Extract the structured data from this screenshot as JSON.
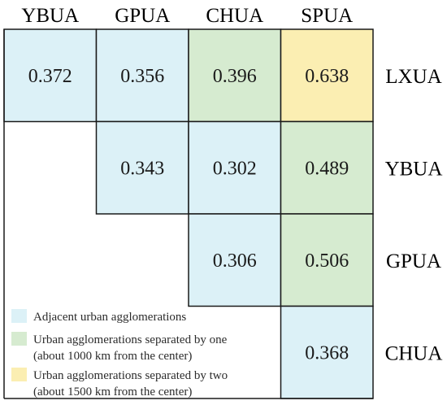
{
  "chart_data": {
    "type": "table",
    "columns": [
      "YBUA",
      "GPUA",
      "CHUA",
      "SPUA"
    ],
    "rows": [
      {
        "label": "LXUA",
        "cells": [
          {
            "value": "0.372",
            "category": "adjacent"
          },
          {
            "value": "0.356",
            "category": "adjacent"
          },
          {
            "value": "0.396",
            "category": "one"
          },
          {
            "value": "0.638",
            "category": "two"
          }
        ]
      },
      {
        "label": "YBUA",
        "cells": [
          null,
          {
            "value": "0.343",
            "category": "adjacent"
          },
          {
            "value": "0.302",
            "category": "adjacent"
          },
          {
            "value": "0.489",
            "category": "one"
          }
        ]
      },
      {
        "label": "GPUA",
        "cells": [
          null,
          null,
          {
            "value": "0.306",
            "category": "adjacent"
          },
          {
            "value": "0.506",
            "category": "one"
          }
        ]
      },
      {
        "label": "CHUA",
        "cells": [
          null,
          null,
          null,
          {
            "value": "0.368",
            "category": "adjacent"
          }
        ]
      }
    ],
    "legend": [
      {
        "key": "adjacent",
        "lines": [
          "Adjacent urban agglomerations"
        ]
      },
      {
        "key": "one",
        "lines": [
          "Urban agglomerations separated by one",
          "(about 1000 km from the center)"
        ]
      },
      {
        "key": "two",
        "lines": [
          "Urban agglomerations separated by two",
          "(about 1500 km from the center)"
        ]
      }
    ],
    "colors": {
      "adjacent": "#dcf1f7",
      "one": "#d6ebd0",
      "two": "#fbeeb2",
      "line": "#1a1a1a"
    }
  }
}
